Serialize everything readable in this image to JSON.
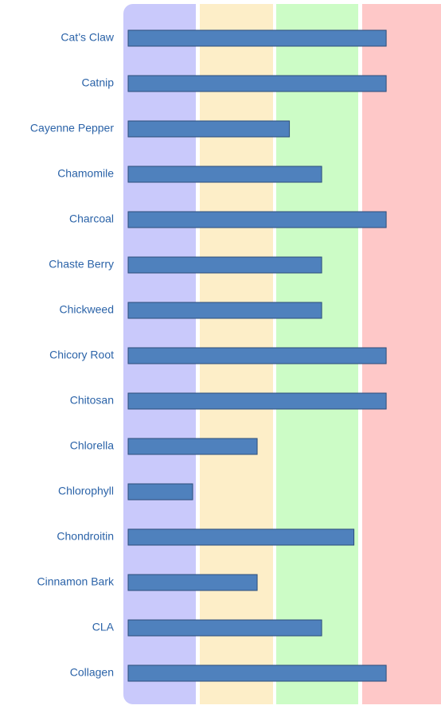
{
  "chart_data": {
    "type": "bar",
    "orientation": "horizontal",
    "categories": [
      "Cat’s Claw",
      "Catnip",
      "Cayenne Pepper",
      "Chamomile",
      "Charcoal",
      "Chaste Berry",
      "Chickweed",
      "Chicory Root",
      "Chitosan",
      "Chlorella",
      "Chlorophyll",
      "Chondroitin",
      "Cinnamon Bark",
      "CLA",
      "Collagen"
    ],
    "values": [
      8,
      8,
      5,
      6,
      8,
      6,
      6,
      8,
      8,
      4,
      2,
      7,
      4,
      6,
      8
    ],
    "color": "#4f81bd",
    "xlim": [
      0,
      9.7
    ]
  }
}
